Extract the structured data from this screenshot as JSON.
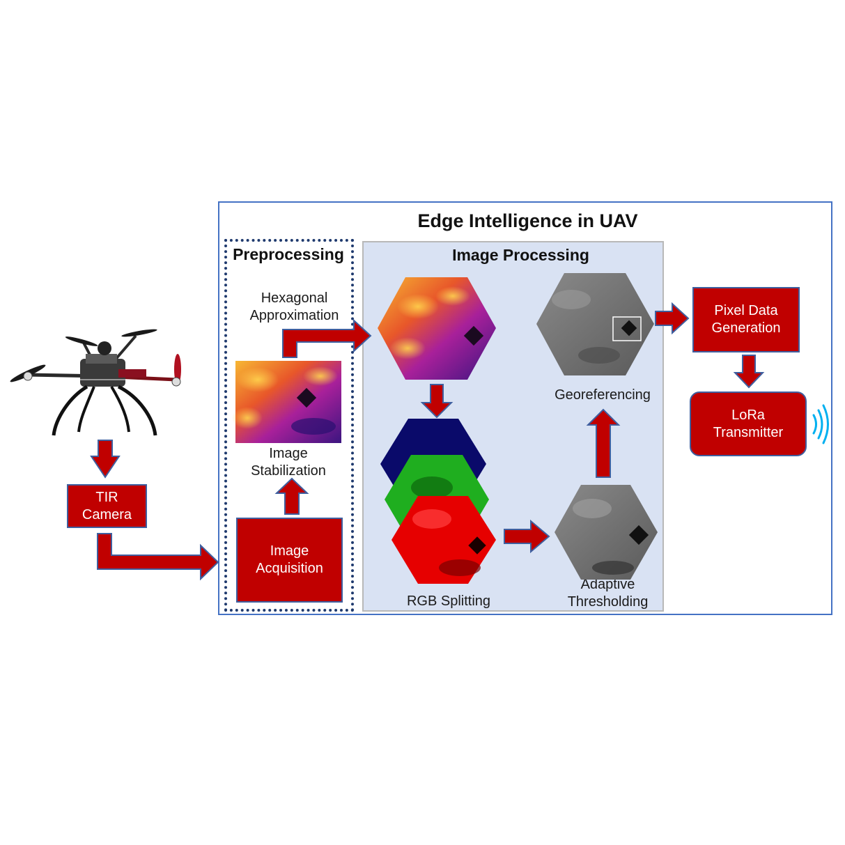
{
  "diagram": {
    "title": "Edge Intelligence in UAV",
    "preprocessing": {
      "title": "Preprocessing",
      "hexagonal_approximation": [
        "Hexagonal",
        "Approximation"
      ],
      "image_stabilization": [
        "Image",
        "Stabilization"
      ],
      "image_acquisition": [
        "Image",
        "Acquisition"
      ]
    },
    "image_processing": {
      "title": "Image Processing",
      "rgb_splitting": "RGB Splitting",
      "adaptive_thresholding": [
        "Adaptive",
        "Thresholding"
      ],
      "georeferencing": "Georeferencing"
    },
    "tir_camera": [
      "TIR",
      "Camera"
    ],
    "pixel_data_generation": [
      "Pixel Data",
      "Generation"
    ],
    "lora_transmitter": [
      "LoRa",
      "Transmitter"
    ]
  },
  "colors": {
    "block_red": "#c00000",
    "block_border": "#3f5f9f",
    "outer_border": "#4472c4",
    "processing_bg": "#d9e2f3",
    "signal_blue": "#00b0f0"
  }
}
